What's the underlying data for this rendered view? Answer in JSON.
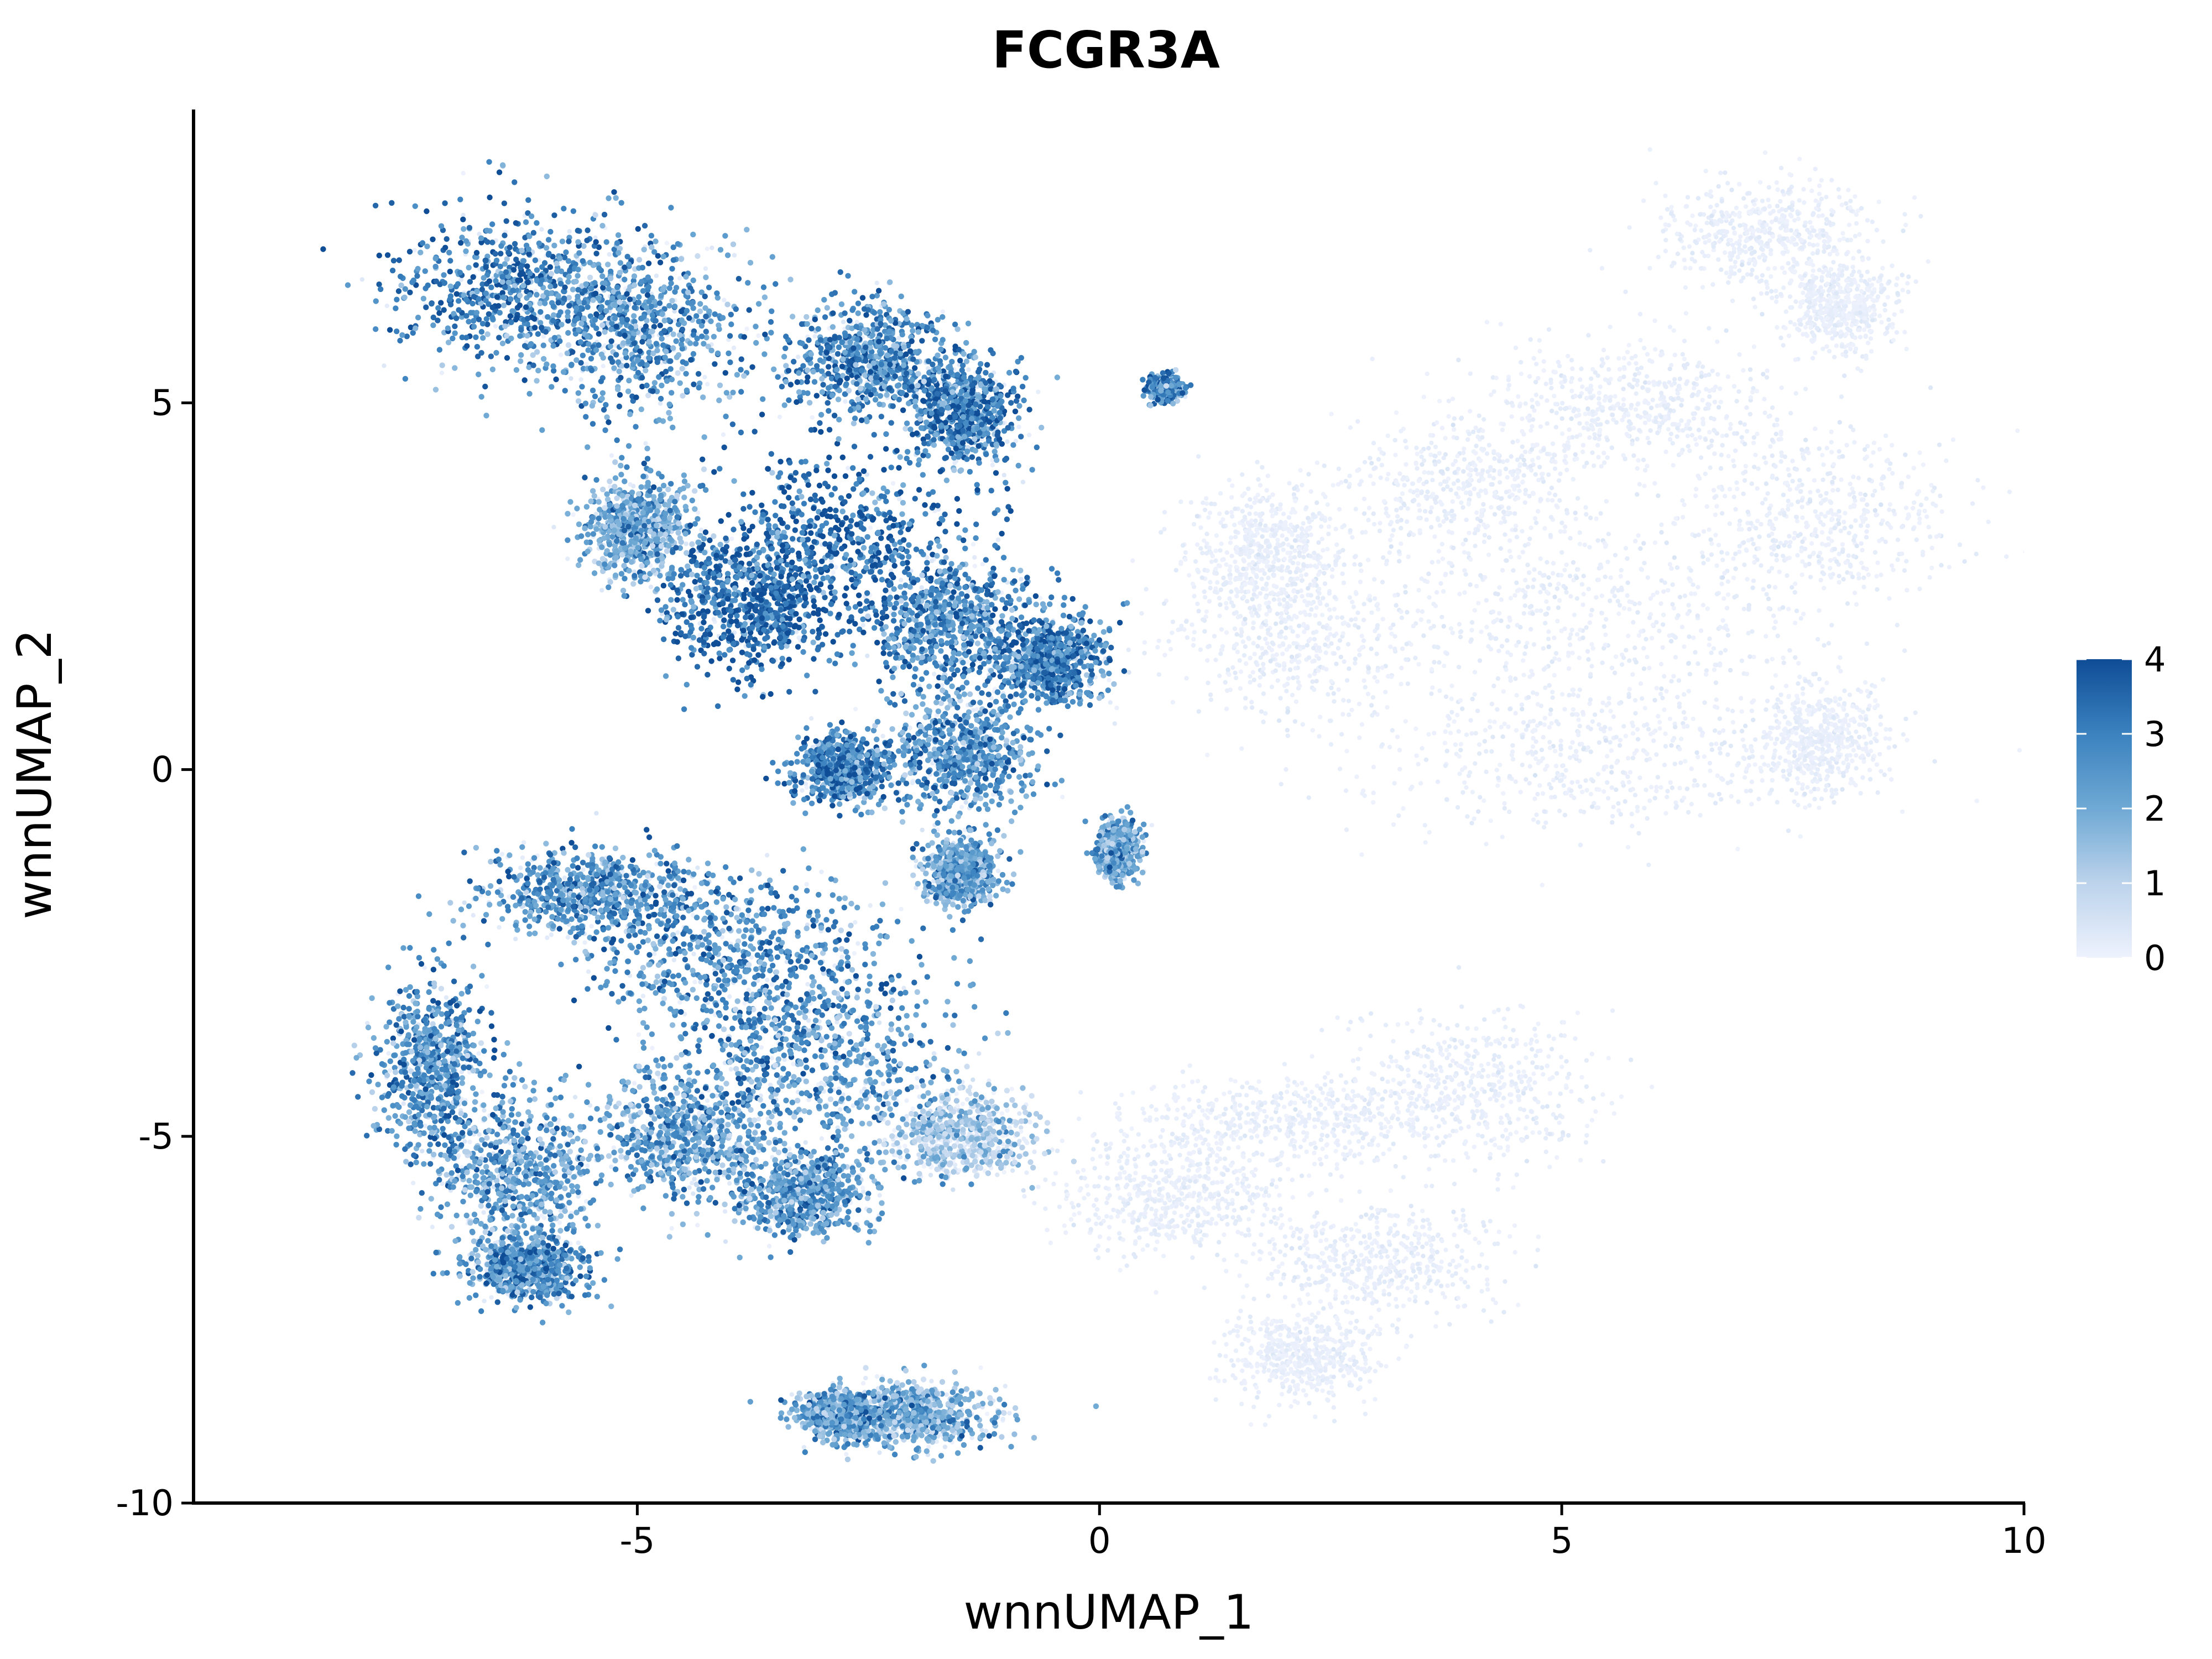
{
  "chart_data": {
    "type": "scatter",
    "title": "FCGR3A",
    "xlabel": "wnnUMAP_1",
    "ylabel": "wnnUMAP_2",
    "xlim": [
      -9.8,
      10
    ],
    "ylim": [
      -10,
      9
    ],
    "xticks": [
      -5,
      0,
      5,
      10
    ],
    "xtick_labels": [
      "-5",
      "0",
      "5",
      "10"
    ],
    "yticks": [
      -10,
      -5,
      0,
      5
    ],
    "ytick_labels": [
      "-10",
      "-5",
      "0",
      "5"
    ],
    "grid": false,
    "legend": {
      "placement": "right",
      "type": "colorbar",
      "min": 0,
      "max": 4,
      "ticks": [
        0,
        1,
        2,
        3,
        4
      ],
      "tick_labels": [
        "0",
        "1",
        "2",
        "3",
        "4"
      ],
      "colors": [
        "#eef2fd",
        "#bcd3eb",
        "#6fa9d4",
        "#3b82bf",
        "#0f4d96"
      ]
    },
    "clusters": [
      {
        "region": "upper-left lobe",
        "cx": -6.3,
        "cy": 6.6,
        "sx": 0.9,
        "sy": 0.7,
        "expression": 3.0
      },
      {
        "region": "upper-left lobe",
        "cx": -5.0,
        "cy": 6.0,
        "sx": 0.8,
        "sy": 0.8,
        "expression": 2.6
      },
      {
        "region": "upper-left lobe",
        "cx": -2.5,
        "cy": 5.6,
        "sx": 0.6,
        "sy": 0.5,
        "expression": 2.7
      },
      {
        "region": "upper-left lobe",
        "cx": -1.5,
        "cy": 4.9,
        "sx": 0.4,
        "sy": 0.5,
        "expression": 3.0
      },
      {
        "region": "upper-left lobe",
        "cx": -2.8,
        "cy": 3.0,
        "sx": 0.9,
        "sy": 0.9,
        "expression": 3.5
      },
      {
        "region": "upper-left lobe",
        "cx": -3.8,
        "cy": 2.3,
        "sx": 0.6,
        "sy": 0.6,
        "expression": 3.4
      },
      {
        "region": "upper-left lobe",
        "cx": -1.6,
        "cy": 2.0,
        "sx": 0.6,
        "sy": 0.6,
        "expression": 2.8
      },
      {
        "region": "upper-left lobe",
        "cx": -0.5,
        "cy": 1.5,
        "sx": 0.4,
        "sy": 0.4,
        "expression": 3.0
      },
      {
        "region": "upper-left lobe",
        "cx": -2.8,
        "cy": 0.0,
        "sx": 0.3,
        "sy": 0.3,
        "expression": 3.0
      },
      {
        "region": "upper-left lobe",
        "cx": -1.5,
        "cy": 0.2,
        "sx": 0.5,
        "sy": 0.5,
        "expression": 2.6
      },
      {
        "region": "upper-left lobe",
        "cx": -5.0,
        "cy": 3.3,
        "sx": 0.4,
        "sy": 0.5,
        "expression": 2.0
      },
      {
        "region": "upper-left lobe",
        "cx": -1.5,
        "cy": -1.4,
        "sx": 0.25,
        "sy": 0.3,
        "expression": 2.2
      },
      {
        "region": "small islet",
        "cx": 0.7,
        "cy": 5.2,
        "sx": 0.12,
        "sy": 0.1,
        "expression": 2.7
      },
      {
        "region": "small islet",
        "cx": 0.2,
        "cy": -1.1,
        "sx": 0.15,
        "sy": 0.25,
        "expression": 2.0
      },
      {
        "region": "lower-left lobe",
        "cx": -5.5,
        "cy": -1.7,
        "sx": 0.8,
        "sy": 0.4,
        "expression": 2.6
      },
      {
        "region": "lower-left lobe",
        "cx": -4.0,
        "cy": -2.6,
        "sx": 1.0,
        "sy": 0.8,
        "expression": 2.7
      },
      {
        "region": "lower-left lobe",
        "cx": -3.0,
        "cy": -4.0,
        "sx": 1.0,
        "sy": 0.9,
        "expression": 2.5
      },
      {
        "region": "lower-left lobe",
        "cx": -4.5,
        "cy": -5.0,
        "sx": 0.6,
        "sy": 0.6,
        "expression": 2.3
      },
      {
        "region": "lower-left lobe",
        "cx": -3.2,
        "cy": -5.8,
        "sx": 0.5,
        "sy": 0.4,
        "expression": 2.4
      },
      {
        "region": "lower-left lobe",
        "cx": -7.2,
        "cy": -4.0,
        "sx": 0.4,
        "sy": 0.8,
        "expression": 2.6
      },
      {
        "region": "lower-left lobe",
        "cx": -6.3,
        "cy": -5.5,
        "sx": 0.6,
        "sy": 0.7,
        "expression": 2.2
      },
      {
        "region": "lower-left lobe",
        "cx": -6.2,
        "cy": -6.8,
        "sx": 0.4,
        "sy": 0.3,
        "expression": 2.6
      },
      {
        "region": "lower-left lobe",
        "cx": -2.0,
        "cy": -8.8,
        "sx": 0.6,
        "sy": 0.3,
        "expression": 1.8
      },
      {
        "region": "lower-left lobe",
        "cx": -2.8,
        "cy": -8.8,
        "sx": 0.3,
        "sy": 0.2,
        "expression": 2.2
      },
      {
        "region": "lower-left lobe",
        "cx": -1.5,
        "cy": -5.0,
        "sx": 0.5,
        "sy": 0.4,
        "expression": 0.8
      },
      {
        "region": "right low-expression",
        "cx": 7.2,
        "cy": 7.3,
        "sx": 0.8,
        "sy": 0.5,
        "expression": 0.0
      },
      {
        "region": "right low-expression",
        "cx": 8.0,
        "cy": 6.3,
        "sx": 0.4,
        "sy": 0.4,
        "expression": 0.0
      },
      {
        "region": "right low-expression",
        "cx": 5.8,
        "cy": 5.0,
        "sx": 1.0,
        "sy": 0.6,
        "expression": 0.0
      },
      {
        "region": "right low-expression",
        "cx": 4.0,
        "cy": 3.8,
        "sx": 1.0,
        "sy": 0.7,
        "expression": 0.0
      },
      {
        "region": "right low-expression",
        "cx": 7.8,
        "cy": 3.5,
        "sx": 1.0,
        "sy": 0.8,
        "expression": 0.0
      },
      {
        "region": "right low-expression",
        "cx": 5.5,
        "cy": 2.0,
        "sx": 1.6,
        "sy": 0.9,
        "expression": 0.0
      },
      {
        "region": "right low-expression",
        "cx": 5.3,
        "cy": 0.2,
        "sx": 1.7,
        "sy": 0.7,
        "expression": 0.0
      },
      {
        "region": "right low-expression",
        "cx": 7.8,
        "cy": 0.4,
        "sx": 0.5,
        "sy": 0.5,
        "expression": 0.0
      },
      {
        "region": "right low-expression",
        "cx": 2.2,
        "cy": 1.8,
        "sx": 1.0,
        "sy": 0.8,
        "expression": 0.0
      },
      {
        "region": "right low-expression",
        "cx": 4.0,
        "cy": -4.3,
        "sx": 1.0,
        "sy": 0.7,
        "expression": 0.0
      },
      {
        "region": "right low-expression",
        "cx": 2.0,
        "cy": -4.8,
        "sx": 1.2,
        "sy": 0.4,
        "expression": 0.0
      },
      {
        "region": "right low-expression",
        "cx": 3.0,
        "cy": -6.7,
        "sx": 0.9,
        "sy": 0.5,
        "expression": 0.0
      },
      {
        "region": "right low-expression",
        "cx": 2.2,
        "cy": -8.0,
        "sx": 0.5,
        "sy": 0.4,
        "expression": 0.0
      },
      {
        "region": "right low-expression",
        "cx": 0.8,
        "cy": -5.8,
        "sx": 0.8,
        "sy": 0.5,
        "expression": 0.1
      },
      {
        "region": "right low-expression",
        "cx": 1.8,
        "cy": 3.0,
        "sx": 0.5,
        "sy": 0.6,
        "expression": 0.2
      }
    ]
  }
}
